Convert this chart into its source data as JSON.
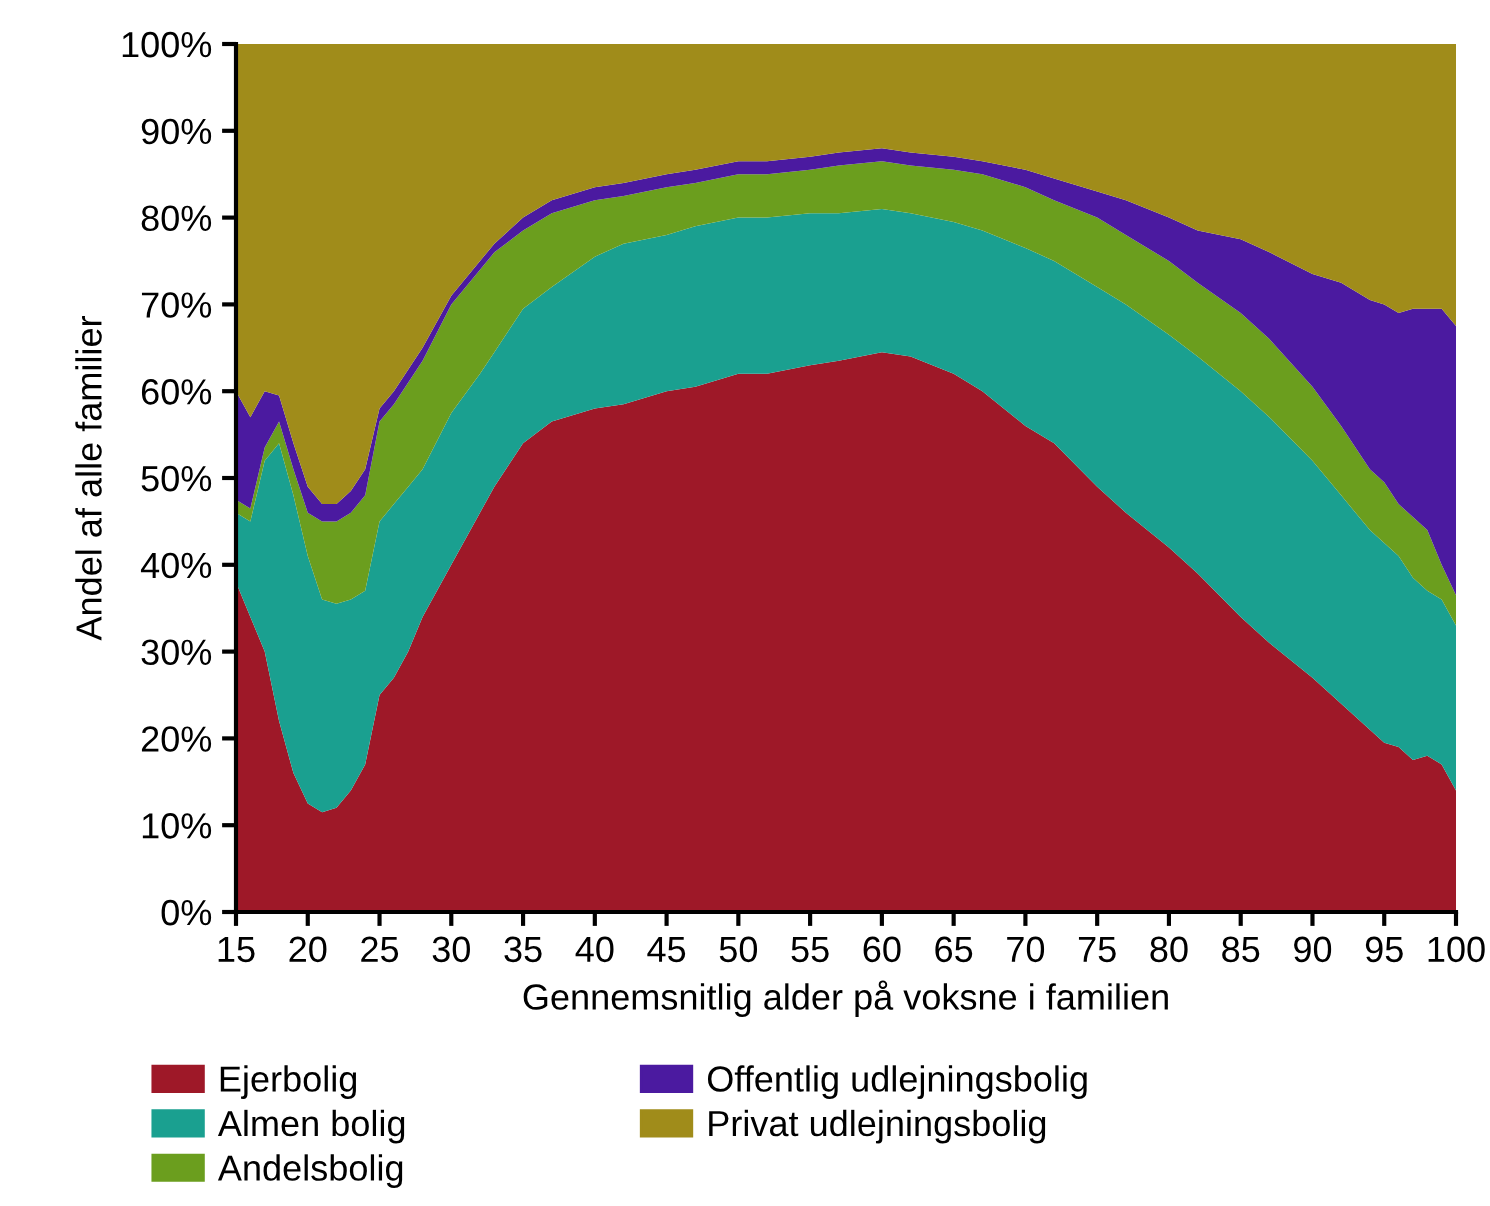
{
  "chart_data": {
    "type": "area",
    "stacked": true,
    "xlabel": "Gennemsnitlig alder på voksne i familien",
    "ylabel": "Andel af alle familier",
    "x": [
      15,
      16,
      17,
      18,
      19,
      20,
      21,
      22,
      23,
      24,
      25,
      26,
      27,
      28,
      30,
      32,
      33,
      35,
      37,
      40,
      42,
      45,
      47,
      50,
      52,
      55,
      57,
      60,
      62,
      65,
      67,
      70,
      72,
      75,
      77,
      80,
      82,
      85,
      87,
      90,
      92,
      94,
      95,
      96,
      97,
      98,
      99,
      100
    ],
    "xlim": [
      15,
      100
    ],
    "xticks": [
      15,
      20,
      25,
      30,
      35,
      40,
      45,
      50,
      55,
      60,
      65,
      70,
      75,
      80,
      85,
      90,
      95,
      100
    ],
    "ylim": [
      0,
      100
    ],
    "yticks": [
      {
        "value": 0,
        "label": "0%"
      },
      {
        "value": 10,
        "label": "10%"
      },
      {
        "value": 20,
        "label": "20%"
      },
      {
        "value": 30,
        "label": "30%"
      },
      {
        "value": 40,
        "label": "40%"
      },
      {
        "value": 50,
        "label": "50%"
      },
      {
        "value": 60,
        "label": "60%"
      },
      {
        "value": 70,
        "label": "70%"
      },
      {
        "value": 80,
        "label": "80%"
      },
      {
        "value": 90,
        "label": "90%"
      },
      {
        "value": 100,
        "label": "100%"
      }
    ],
    "grid": false,
    "legend": "bottom",
    "series": [
      {
        "name": "Ejerbolig",
        "color": "#9e1828",
        "values": [
          38,
          34,
          30,
          22,
          16,
          12.5,
          11.5,
          12,
          14,
          17,
          25,
          27,
          30,
          34,
          40,
          46,
          49,
          54,
          56.5,
          58,
          58.5,
          60,
          60.5,
          62,
          62,
          63,
          63.5,
          64.5,
          64,
          62,
          60,
          56,
          54,
          49,
          46,
          42,
          39,
          34,
          31,
          27,
          24,
          21,
          19.5,
          19,
          17.5,
          18,
          17,
          14
        ]
      },
      {
        "name": "Almen bolig",
        "color": "#1aa090",
        "values": [
          8,
          11,
          22,
          32,
          32,
          28.5,
          24.5,
          23.5,
          22,
          20,
          20,
          20,
          19,
          17,
          17.5,
          16,
          15.5,
          15.5,
          15.5,
          17.5,
          18.5,
          18,
          18.5,
          18,
          18,
          17.5,
          17,
          16.5,
          16.5,
          17.5,
          18.5,
          20.5,
          21,
          23,
          24,
          24.5,
          25,
          26,
          26,
          25,
          24,
          23,
          23,
          22,
          21,
          19,
          19,
          19
        ]
      },
      {
        "name": "Andelsbolig",
        "color": "#6b9e1e",
        "values": [
          1.5,
          1.5,
          1.5,
          2.5,
          3,
          5,
          9,
          9.5,
          10,
          11,
          11.5,
          11.5,
          12,
          12.5,
          12.5,
          12,
          11.5,
          9,
          8.5,
          6.5,
          5.5,
          5.5,
          5,
          5,
          5,
          5,
          5.5,
          5.5,
          5.5,
          6,
          6.5,
          7,
          7,
          8,
          8,
          8.5,
          8.5,
          9,
          9,
          8.5,
          8,
          7,
          7,
          6,
          7,
          7,
          4,
          3.5
        ]
      },
      {
        "name": "Offentlig udlejningsbolig",
        "color": "#4b1aa0",
        "values": [
          12.5,
          10.5,
          6.5,
          3,
          3,
          3,
          2,
          2,
          2.5,
          3,
          1.5,
          1.5,
          1.5,
          1.5,
          1,
          1,
          1,
          1.5,
          1.5,
          1.5,
          1.5,
          1.5,
          1.5,
          1.5,
          1.5,
          1.5,
          1.5,
          1.5,
          1.5,
          1.5,
          1.5,
          2,
          2.5,
          3,
          4,
          5,
          6,
          8.5,
          10,
          13,
          16.5,
          19.5,
          20.5,
          22,
          24,
          25.5,
          29.5,
          31
        ]
      },
      {
        "name": "Privat udlejningsbolig",
        "color": "#a08c1a",
        "values": [
          40,
          43,
          40,
          40.5,
          46,
          51,
          53,
          53,
          51.5,
          49,
          42,
          40,
          37.5,
          35,
          29,
          25,
          23,
          20,
          18,
          16.5,
          16,
          15,
          14.5,
          13.5,
          13.5,
          13,
          12.5,
          12,
          12.5,
          13,
          13.5,
          14.5,
          15.5,
          17,
          18,
          20,
          21.5,
          22.5,
          24,
          26.5,
          27.5,
          29.5,
          30,
          31,
          30.5,
          30.5,
          30.5,
          32.5
        ]
      }
    ]
  }
}
